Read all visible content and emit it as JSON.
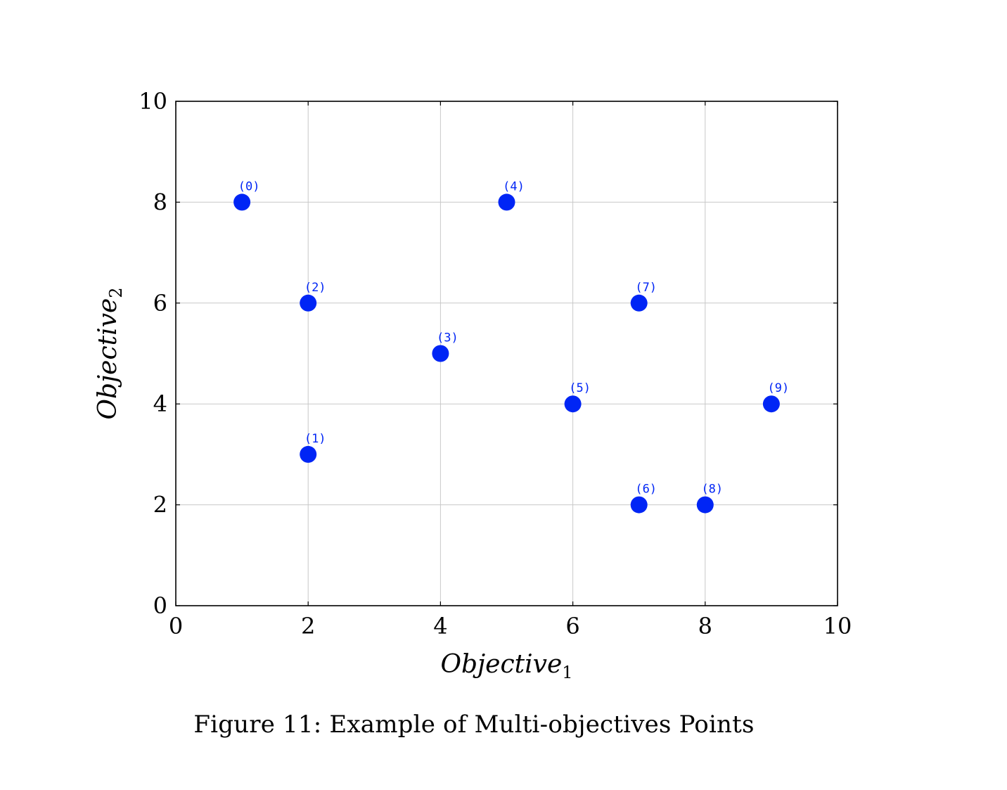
{
  "caption": "Figure 11: Example of Multi-objectives Points",
  "chart_data": {
    "type": "scatter",
    "xlabel": "Objective",
    "xlabel_subscript": "1",
    "ylabel": "Objective",
    "ylabel_subscript": "2",
    "xlim": [
      0,
      10
    ],
    "ylim": [
      0,
      10
    ],
    "xticks": [
      0,
      2,
      4,
      6,
      8,
      10
    ],
    "yticks": [
      0,
      2,
      4,
      6,
      8,
      10
    ],
    "grid": true,
    "marker_color": "#0025f5",
    "gridline_color": "#c8c8c8",
    "points": [
      {
        "label": "(0)",
        "x": 1,
        "y": 8
      },
      {
        "label": "(1)",
        "x": 2,
        "y": 3
      },
      {
        "label": "(2)",
        "x": 2,
        "y": 6
      },
      {
        "label": "(3)",
        "x": 4,
        "y": 5
      },
      {
        "label": "(4)",
        "x": 5,
        "y": 8
      },
      {
        "label": "(5)",
        "x": 6,
        "y": 4
      },
      {
        "label": "(6)",
        "x": 7,
        "y": 2
      },
      {
        "label": "(7)",
        "x": 7,
        "y": 6
      },
      {
        "label": "(8)",
        "x": 8,
        "y": 2
      },
      {
        "label": "(9)",
        "x": 9,
        "y": 4
      }
    ]
  }
}
